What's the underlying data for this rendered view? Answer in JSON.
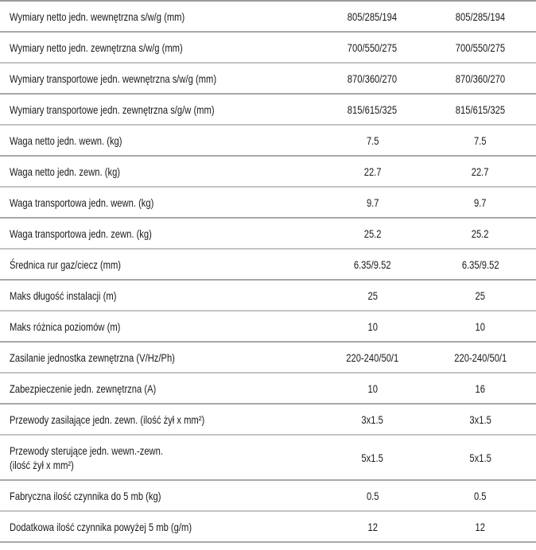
{
  "rows": [
    {
      "label": "Wymiary netto jedn. wewnętrzna s/w/g (mm)",
      "values": [
        "805/285/194",
        "805/285/194"
      ]
    },
    {
      "label": "Wymiary netto jedn. zewnętrzna s/w/g (mm)",
      "values": [
        "700/550/275",
        "700/550/275"
      ]
    },
    {
      "label": "Wymiary transportowe jedn. wewnętrzna s/w/g (mm)",
      "values": [
        "870/360/270",
        "870/360/270"
      ]
    },
    {
      "label": "Wymiary transportowe jedn. zewnętrzna s/g/w (mm)",
      "values": [
        "815/615/325",
        "815/615/325"
      ]
    },
    {
      "label": "Waga netto jedn. wewn. (kg)",
      "values": [
        "7.5",
        "7.5"
      ]
    },
    {
      "label": "Waga netto jedn. zewn. (kg)",
      "values": [
        "22.7",
        "22.7"
      ]
    },
    {
      "label": "Waga transportowa jedn. wewn. (kg)",
      "values": [
        "9.7",
        "9.7"
      ]
    },
    {
      "label": "Waga transportowa jedn. zewn. (kg)",
      "values": [
        "25.2",
        "25.2"
      ]
    },
    {
      "label": "Średnica rur gaz/ciecz (mm)",
      "values": [
        "6.35/9.52",
        "6.35/9.52"
      ]
    },
    {
      "label": "Maks długość instalacji (m)",
      "values": [
        "25",
        "25"
      ]
    },
    {
      "label": "Maks różnica poziomów (m)",
      "values": [
        "10",
        "10"
      ]
    },
    {
      "label": "Zasilanie jednostka zewnętrzna (V/Hz/Ph)",
      "values": [
        "220-240/50/1",
        "220-240/50/1"
      ]
    },
    {
      "label": "Zabezpieczenie jedn. zewnętrzna (A)",
      "values": [
        "10",
        "16"
      ]
    },
    {
      "label": "Przewody zasilające jedn. zewn. (ilość żył x mm²)",
      "values": [
        "3x1.5",
        "3x1.5"
      ]
    },
    {
      "label": "Przewody sterujące jedn. wewn.-zewn.",
      "label2": "(ilość żył x mm²)",
      "values": [
        "5x1.5",
        "5x1.5"
      ]
    },
    {
      "label": "Fabryczna ilość czynnika do 5 mb (kg)",
      "values": [
        "0.5",
        "0.5"
      ]
    },
    {
      "label": "Dodatkowa ilość czynnika powyżej 5 mb  (g/m)",
      "values": [
        "12",
        "12"
      ]
    }
  ]
}
